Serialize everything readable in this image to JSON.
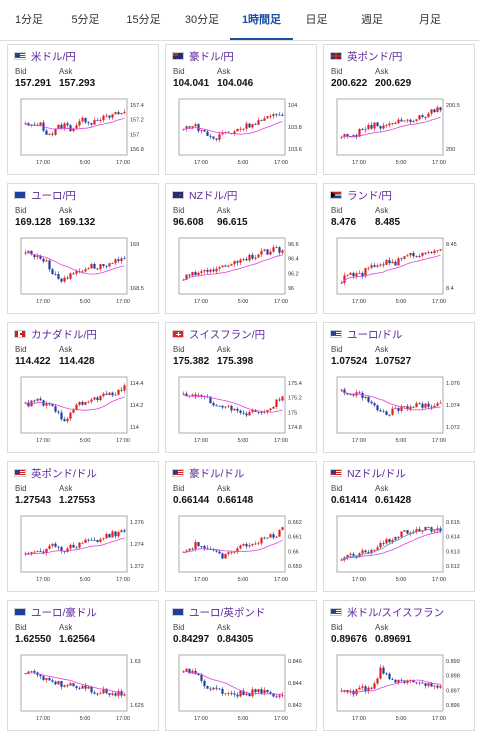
{
  "tabs": [
    {
      "label": "1分足",
      "active": false
    },
    {
      "label": "5分足",
      "active": false
    },
    {
      "label": "15分足",
      "active": false
    },
    {
      "label": "30分足",
      "active": false
    },
    {
      "label": "1時間足",
      "active": true
    },
    {
      "label": "日足",
      "active": false
    },
    {
      "label": "週足",
      "active": false
    },
    {
      "label": "月足",
      "active": false
    }
  ],
  "quote_labels": {
    "bid": "Bid",
    "ask": "Ask"
  },
  "x_ticks": [
    "17:00",
    "5:00",
    "17:00"
  ],
  "colors": {
    "up": "#e02020",
    "down": "#1f3fa0",
    "ma": "#e040e0",
    "ma2": "#3aa0d8"
  },
  "cards": [
    {
      "name": "米ドル/円",
      "flag": "us",
      "bid": "157.291",
      "ask": "157.293",
      "y_ticks": [
        "157.4",
        "157.2",
        "157",
        "156.8"
      ],
      "trend": [
        0.55,
        0.5,
        0.6,
        0.4,
        0.35,
        0.5,
        0.55,
        0.45,
        0.6,
        0.65,
        0.6,
        0.7,
        0.68,
        0.72,
        0.78,
        0.8
      ]
    },
    {
      "name": "豪ドル/円",
      "flag": "au",
      "bid": "104.041",
      "ask": "104.046",
      "y_ticks": [
        "104",
        "103.8",
        "103.6"
      ],
      "trend": [
        0.45,
        0.55,
        0.5,
        0.4,
        0.3,
        0.25,
        0.4,
        0.35,
        0.45,
        0.5,
        0.55,
        0.6,
        0.65,
        0.7,
        0.72,
        0.75
      ]
    },
    {
      "name": "英ポンド/円",
      "flag": "gb",
      "bid": "200.622",
      "ask": "200.629",
      "y_ticks": [
        "200.5",
        "200"
      ],
      "trend": [
        0.3,
        0.35,
        0.3,
        0.45,
        0.5,
        0.55,
        0.5,
        0.6,
        0.58,
        0.65,
        0.6,
        0.68,
        0.7,
        0.75,
        0.85,
        0.9
      ]
    },
    {
      "name": "ユーロ/円",
      "flag": "eu",
      "bid": "169.128",
      "ask": "169.132",
      "y_ticks": [
        "169",
        "168.5"
      ],
      "trend": [
        0.8,
        0.75,
        0.7,
        0.6,
        0.4,
        0.25,
        0.2,
        0.35,
        0.4,
        0.45,
        0.5,
        0.48,
        0.52,
        0.55,
        0.6,
        0.62
      ]
    },
    {
      "name": "NZドル/円",
      "flag": "nz",
      "bid": "96.608",
      "ask": "96.615",
      "y_ticks": [
        "96.6",
        "96.4",
        "96.2",
        "96"
      ],
      "trend": [
        0.25,
        0.3,
        0.35,
        0.4,
        0.45,
        0.4,
        0.5,
        0.55,
        0.6,
        0.65,
        0.7,
        0.72,
        0.78,
        0.8,
        0.85,
        0.82
      ]
    },
    {
      "name": "ランド/円",
      "flag": "za",
      "bid": "8.476",
      "ask": "8.485",
      "y_ticks": [
        "8.45",
        "8.4"
      ],
      "trend": [
        0.2,
        0.3,
        0.35,
        0.3,
        0.45,
        0.5,
        0.55,
        0.6,
        0.55,
        0.65,
        0.7,
        0.75,
        0.72,
        0.8,
        0.85,
        0.88
      ]
    },
    {
      "name": "カナダドル/円",
      "flag": "ca",
      "bid": "114.422",
      "ask": "114.428",
      "y_ticks": [
        "114.4",
        "114.2",
        "114"
      ],
      "trend": [
        0.5,
        0.55,
        0.6,
        0.5,
        0.45,
        0.3,
        0.2,
        0.4,
        0.5,
        0.55,
        0.6,
        0.65,
        0.7,
        0.72,
        0.8,
        0.85
      ]
    },
    {
      "name": "スイスフラン/円",
      "flag": "ch",
      "bid": "175.382",
      "ask": "175.398",
      "y_ticks": [
        "175.4",
        "175.2",
        "175",
        "174.8"
      ],
      "trend": [
        0.7,
        0.75,
        0.65,
        0.7,
        0.6,
        0.5,
        0.4,
        0.45,
        0.35,
        0.3,
        0.35,
        0.4,
        0.35,
        0.45,
        0.55,
        0.65
      ]
    },
    {
      "name": "ユーロ/ドル",
      "flag": "us",
      "bid": "1.07524",
      "ask": "1.07527",
      "y_ticks": [
        "1.076",
        "1.074",
        "1.072"
      ],
      "trend": [
        0.8,
        0.75,
        0.7,
        0.72,
        0.6,
        0.45,
        0.35,
        0.3,
        0.4,
        0.45,
        0.42,
        0.5,
        0.48,
        0.52,
        0.5,
        0.55
      ]
    },
    {
      "name": "英ポンド/ドル",
      "flag": "us",
      "bid": "1.27543",
      "ask": "1.27553",
      "y_ticks": [
        "1.276",
        "1.274",
        "1.272"
      ],
      "trend": [
        0.3,
        0.35,
        0.4,
        0.35,
        0.5,
        0.45,
        0.35,
        0.45,
        0.5,
        0.55,
        0.6,
        0.58,
        0.65,
        0.7,
        0.72,
        0.8
      ]
    },
    {
      "name": "豪ドル/ドル",
      "flag": "us",
      "bid": "0.66144",
      "ask": "0.66148",
      "y_ticks": [
        "0.662",
        "0.661",
        "0.66",
        "0.659"
      ],
      "trend": [
        0.35,
        0.4,
        0.5,
        0.45,
        0.35,
        0.3,
        0.25,
        0.35,
        0.4,
        0.45,
        0.5,
        0.55,
        0.6,
        0.65,
        0.7,
        0.8
      ]
    },
    {
      "name": "NZドル/ドル",
      "flag": "us",
      "bid": "0.61414",
      "ask": "0.61428",
      "y_ticks": [
        "0.615",
        "0.614",
        "0.613",
        "0.612"
      ],
      "trend": [
        0.2,
        0.25,
        0.22,
        0.3,
        0.35,
        0.4,
        0.5,
        0.55,
        0.65,
        0.7,
        0.75,
        0.8,
        0.78,
        0.82,
        0.8,
        0.75
      ]
    },
    {
      "name": "ユーロ/豪ドル",
      "flag": "eu",
      "bid": "1.62550",
      "ask": "1.62564",
      "y_ticks": [
        "1.63",
        "1.625"
      ],
      "trend": [
        0.75,
        0.7,
        0.65,
        0.6,
        0.55,
        0.5,
        0.45,
        0.5,
        0.4,
        0.45,
        0.35,
        0.3,
        0.35,
        0.25,
        0.3,
        0.28
      ]
    },
    {
      "name": "ユーロ/英ポンド",
      "flag": "eu",
      "bid": "0.84297",
      "ask": "0.84305",
      "y_ticks": [
        "0.846",
        "0.844",
        "0.842"
      ],
      "trend": [
        0.8,
        0.75,
        0.7,
        0.5,
        0.35,
        0.4,
        0.3,
        0.35,
        0.25,
        0.3,
        0.28,
        0.35,
        0.3,
        0.28,
        0.25,
        0.3
      ]
    },
    {
      "name": "米ドル/スイスフラン",
      "flag": "us",
      "bid": "0.89676",
      "ask": "0.89691",
      "y_ticks": [
        "0.899",
        "0.898",
        "0.897",
        "0.896"
      ],
      "trend": [
        0.3,
        0.35,
        0.3,
        0.4,
        0.35,
        0.45,
        0.8,
        0.65,
        0.55,
        0.6,
        0.5,
        0.55,
        0.45,
        0.5,
        0.45,
        0.4
      ]
    }
  ]
}
